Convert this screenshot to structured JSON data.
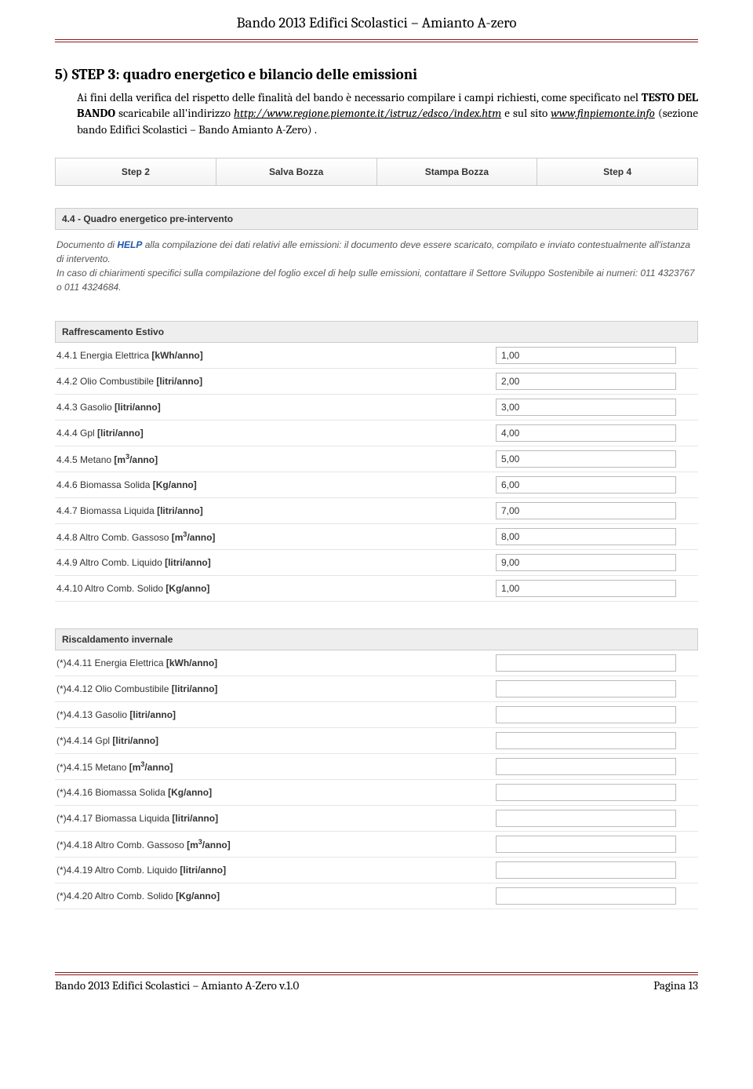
{
  "header": {
    "title": "Bando 2013 Edifici Scolastici – Amianto A-zero"
  },
  "step": {
    "title": "5)  STEP 3: quadro energetico e bilancio delle emissioni",
    "intro_pre": "Ai fini della verifica del rispetto delle finalità del bando è necessario compilare i campi richiesti, come specificato nel ",
    "intro_bold": "TESTO DEL BANDO",
    "intro_mid1": " scaricabile all'indirizzo ",
    "intro_url1": "http://www.regione.piemonte.it/istruz/edsco/index.htm",
    "intro_mid2": " e sul sito ",
    "intro_url2": "www.finpiemonte.info",
    "intro_post": "  (sezione bando Edifici Scolastici – Bando Amianto A-Zero) ."
  },
  "buttons": {
    "step2": "Step 2",
    "salva": "Salva Bozza",
    "stampa": "Stampa Bozza",
    "step4": "Step 4"
  },
  "sec44": {
    "title": "4.4 - Quadro energetico pre-intervento",
    "help_pre": "Documento di ",
    "help_link": "HELP",
    "help_post1": " alla compilazione dei dati relativi alle emissioni: il documento deve essere scaricato, compilato e inviato contestualmente all'istanza di intervento.",
    "help_line2": "In caso di chiarimenti specifici sulla compilazione del foglio excel di help sulle emissioni, contattare il Settore Sviluppo Sostenibile ai numeri: 011 4323767 o 011 4324684."
  },
  "raffrescamento": {
    "title": "Raffrescamento Estivo",
    "rows": [
      {
        "label_pre": "4.4.1 Energia Elettrica ",
        "label_unit": "[kWh/anno]",
        "value": "1,00"
      },
      {
        "label_pre": "4.4.2 Olio Combustibile ",
        "label_unit": "[litri/anno]",
        "value": "2,00"
      },
      {
        "label_pre": "4.4.3 Gasolio ",
        "label_unit": "[litri/anno]",
        "value": "3,00"
      },
      {
        "label_pre": "4.4.4 Gpl ",
        "label_unit": "[litri/anno]",
        "value": "4,00"
      },
      {
        "label_pre": "4.4.5 Metano ",
        "label_unit_html": "[m<sup>3</sup>/anno]",
        "value": "5,00"
      },
      {
        "label_pre": "4.4.6 Biomassa Solida ",
        "label_unit": "[Kg/anno]",
        "value": "6,00"
      },
      {
        "label_pre": "4.4.7 Biomassa Liquida ",
        "label_unit": "[litri/anno]",
        "value": "7,00"
      },
      {
        "label_pre": "4.4.8 Altro Comb. Gassoso ",
        "label_unit_html": "[m<sup>3</sup>/anno]",
        "value": "8,00"
      },
      {
        "label_pre": "4.4.9 Altro Comb. Liquido ",
        "label_unit": "[litri/anno]",
        "value": "9,00"
      },
      {
        "label_pre": "4.4.10 Altro Comb. Solido ",
        "label_unit": "[Kg/anno]",
        "value": "1,00"
      }
    ]
  },
  "riscaldamento": {
    "title": "Riscaldamento invernale",
    "rows": [
      {
        "label_pre": "(*)4.4.11 Energia Elettrica ",
        "label_unit": "[kWh/anno]",
        "value": ""
      },
      {
        "label_pre": "(*)4.4.12 Olio Combustibile ",
        "label_unit": "[litri/anno]",
        "value": ""
      },
      {
        "label_pre": "(*)4.4.13 Gasolio ",
        "label_unit": "[litri/anno]",
        "value": ""
      },
      {
        "label_pre": "(*)4.4.14 Gpl ",
        "label_unit": "[litri/anno]",
        "value": ""
      },
      {
        "label_pre": "(*)4.4.15 Metano ",
        "label_unit_html": "[m<sup>3</sup>/anno]",
        "value": ""
      },
      {
        "label_pre": "(*)4.4.16 Biomassa Solida ",
        "label_unit": "[Kg/anno]",
        "value": ""
      },
      {
        "label_pre": "(*)4.4.17 Biomassa Liquida ",
        "label_unit": "[litri/anno]",
        "value": ""
      },
      {
        "label_pre": "(*)4.4.18 Altro Comb. Gassoso ",
        "label_unit_html": "[m<sup>3</sup>/anno]",
        "value": ""
      },
      {
        "label_pre": "(*)4.4.19 Altro Comb. Liquido ",
        "label_unit": "[litri/anno]",
        "value": ""
      },
      {
        "label_pre": "(*)4.4.20 Altro Comb. Solido ",
        "label_unit": "[Kg/anno]",
        "value": ""
      }
    ]
  },
  "footer": {
    "left": "Bando 2013 Edifici Scolastici – Amianto A-Zero v.1.0",
    "right": "Pagina 13"
  }
}
